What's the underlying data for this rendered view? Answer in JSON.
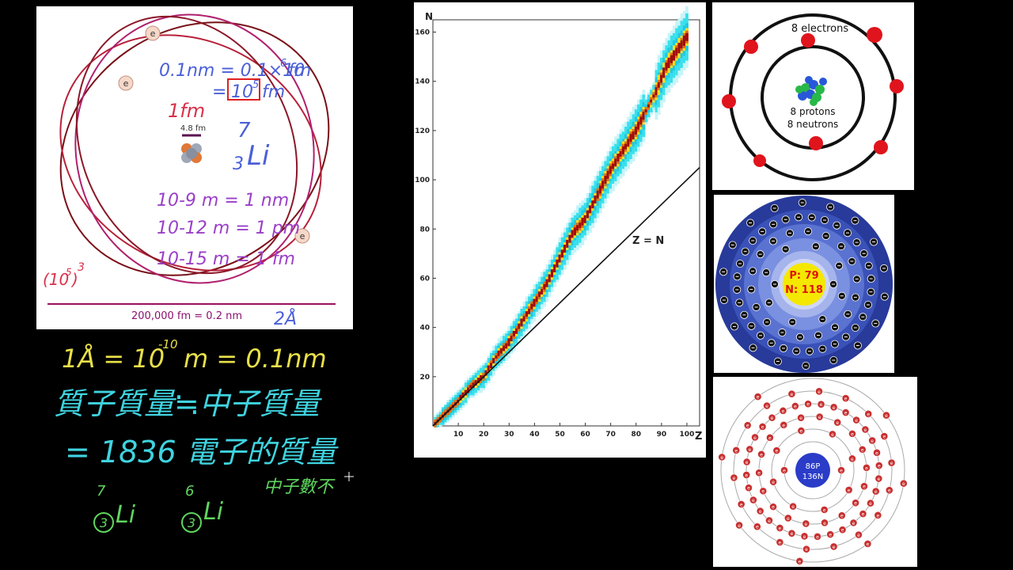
{
  "atom_panel": {
    "electron_label": "e",
    "nucleus_scale": "4.8 fm",
    "conversion_line1": "0.1nm = 0.1×10",
    "conversion_exp": "6",
    "conversion_unit": "fm",
    "conversion_line2_prefix": "=",
    "conversion_line2_base": "10",
    "conversion_line2_exp": "5",
    "conversion_line2_unit": "fm",
    "one_fm": "1fm",
    "lithium_mass": "7",
    "lithium_number": "3",
    "lithium_symbol": "Li",
    "unit_nm": "10-9 m = 1 nm",
    "unit_pm": "10-12 m = 1 pm",
    "unit_fm": "10-15 m = 1 fm",
    "volume_note": "(10",
    "volume_exp": "5",
    "volume_close": ")",
    "volume_power": "3",
    "scale_label": "200,000 fm = 0.2 nm",
    "angstrom_note": "2Å"
  },
  "chart_data": {
    "type": "heatmap",
    "title": "",
    "xlabel": "Z",
    "ylabel": "N",
    "xlim": [
      0,
      105
    ],
    "ylim": [
      0,
      165
    ],
    "x_ticks": [
      "10",
      "20",
      "30",
      "40",
      "50",
      "60",
      "70",
      "80",
      "90",
      "100"
    ],
    "y_ticks": [
      "20",
      "40",
      "60",
      "80",
      "100",
      "120",
      "140",
      "160"
    ],
    "reference_line_label": "Z = N",
    "stable_band": [
      [
        1,
        1
      ],
      [
        5,
        5
      ],
      [
        10,
        10
      ],
      [
        15,
        16
      ],
      [
        20,
        20
      ],
      [
        25,
        28
      ],
      [
        30,
        34
      ],
      [
        35,
        42
      ],
      [
        40,
        50
      ],
      [
        45,
        58
      ],
      [
        50,
        68
      ],
      [
        55,
        78
      ],
      [
        60,
        84
      ],
      [
        65,
        94
      ],
      [
        70,
        104
      ],
      [
        75,
        112
      ],
      [
        80,
        120
      ],
      [
        83,
        126
      ],
      [
        88,
        136
      ],
      [
        92,
        146
      ],
      [
        96,
        152
      ],
      [
        100,
        158
      ]
    ]
  },
  "oxygen_model": {
    "electrons_label": "8 electrons",
    "protons_label": "8 protons",
    "neutrons_label": "8 neutrons"
  },
  "gold_model": {
    "protons": "P: 79",
    "neutrons": "N: 118",
    "electron_symbol": "-"
  },
  "radon_model": {
    "nucleus_line1": "86P",
    "nucleus_line2": "136N",
    "electron_symbol": "e"
  },
  "notes": {
    "angstrom": "1Å = 10",
    "angstrom_exp": "-10",
    "angstrom_rest": "m = 0.1nm",
    "mass_line1": "質子質量≒中子質量",
    "mass_line2": "= 1836 電子的質量",
    "isotope_a_mass": "7",
    "isotope_a_number": "3",
    "isotope_a_symbol": "Li",
    "isotope_b_mass": "6",
    "isotope_b_number": "3",
    "isotope_b_symbol": "Li",
    "neutron_note": "中子數不"
  },
  "colors": {
    "background": "#000000",
    "note_yellow": "#e8e04a",
    "note_cyan": "#3fd4e0",
    "note_green": "#5fd65f",
    "annot_blue": "#4a5fd8",
    "annot_purple": "#9a3fc8",
    "annot_red": "#d8324a",
    "orbit_dark": "#7a1018",
    "orbit_red": "#b8203a",
    "orbit_magenta": "#b0206e"
  }
}
